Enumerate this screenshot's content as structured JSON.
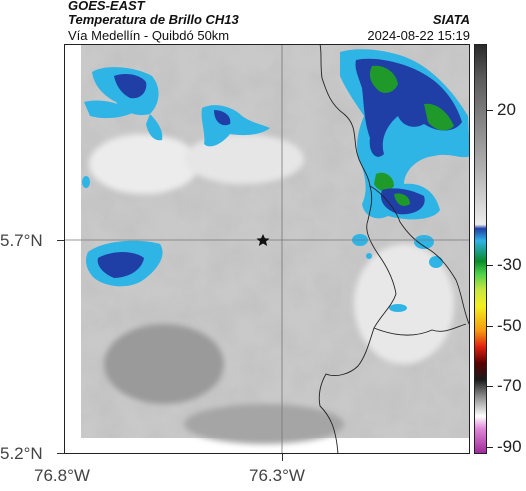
{
  "header": {
    "satellite": "GOES-EAST",
    "product": "Temperatura de Brillo CH13",
    "route": "Vía Medellín - Quibdó 50km",
    "organization": "SIATA",
    "timestamp": "2024-08-22 15:19"
  },
  "axes": {
    "y_ticks": [
      "5.7°N",
      "5.2°N"
    ],
    "x_ticks": [
      "76.8°W",
      "76.3°W"
    ]
  },
  "colorbar": {
    "ticks": [
      "20",
      "-30",
      "-50",
      "-70",
      "-90"
    ]
  },
  "colors": {
    "background_gray": "#c8c8c8",
    "cold_cloud_blue": "#1f3fa6",
    "cyan": "#2fb4e6",
    "green": "#1f9a2a",
    "border_line": "#222222"
  }
}
